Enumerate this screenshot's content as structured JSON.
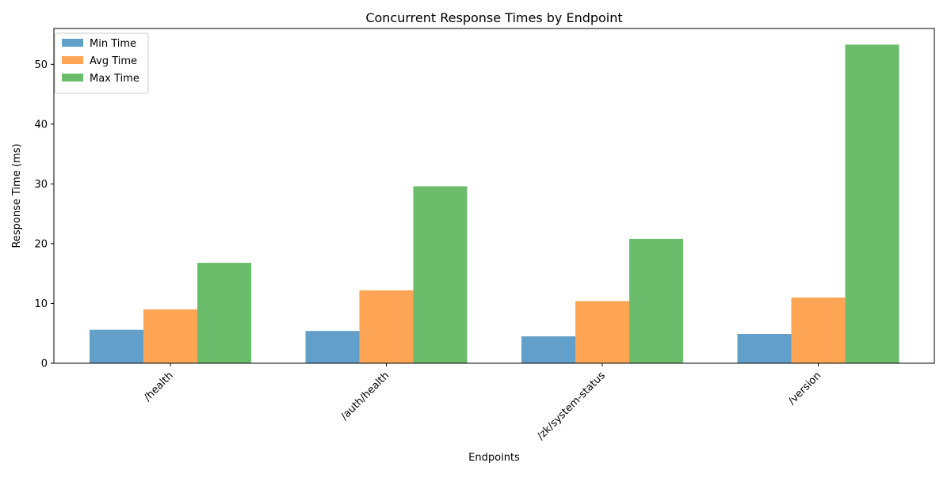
{
  "chart_data": {
    "type": "bar",
    "title": "Concurrent Response Times by Endpoint",
    "xlabel": "Endpoints",
    "ylabel": "Response Time (ms)",
    "categories": [
      "/health",
      "/auth/health",
      "/zk/system-status",
      "/version"
    ],
    "series": [
      {
        "name": "Min Time",
        "color": "#1f77b4",
        "values": [
          5.6,
          5.4,
          4.5,
          4.9
        ]
      },
      {
        "name": "Avg Time",
        "color": "#ff7f0e",
        "values": [
          9.0,
          12.2,
          10.4,
          11.0
        ]
      },
      {
        "name": "Max Time",
        "color": "#2ca02c",
        "values": [
          16.8,
          29.6,
          20.8,
          53.3
        ]
      }
    ],
    "ylim": [
      0,
      56
    ],
    "yticks": [
      0,
      10,
      20,
      30,
      40,
      50
    ],
    "grid": false,
    "legend_position": "top-left",
    "bar_alpha": 0.7
  }
}
